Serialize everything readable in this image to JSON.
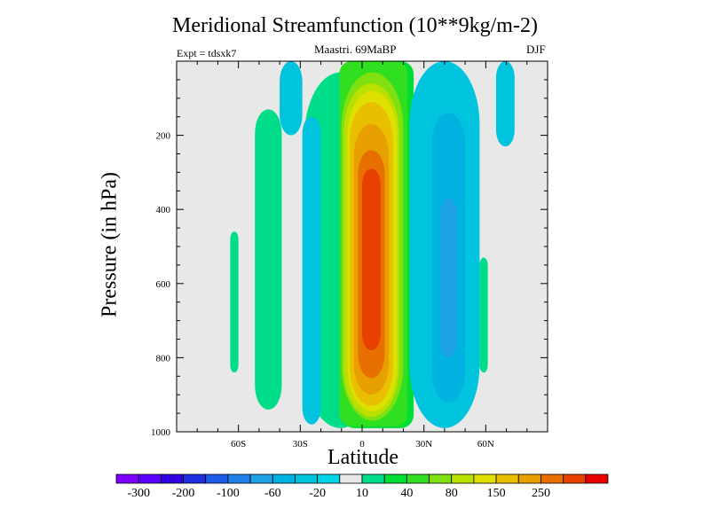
{
  "chart_data": {
    "type": "contour",
    "title": "Meridional Streamfunction (10**9kg/m-2)",
    "left_label": "Expt = tdsxk7",
    "center_label": "Maastri.  69MaBP",
    "right_label": "DJF",
    "xlabel": "Latitude",
    "ylabel": "Pressure (in hPa)",
    "x_axis": {
      "range": [
        -90,
        90
      ],
      "ticks": [
        {
          "value": -60,
          "label": "60S"
        },
        {
          "value": -30,
          "label": "30S"
        },
        {
          "value": 0,
          "label": "0"
        },
        {
          "value": 30,
          "label": "30N"
        },
        {
          "value": 60,
          "label": "60N"
        }
      ],
      "minor_step": 10
    },
    "y_axis": {
      "range": [
        0,
        1000
      ],
      "reversed": true,
      "ticks": [
        {
          "value": 200,
          "label": "200"
        },
        {
          "value": 400,
          "label": "400"
        },
        {
          "value": 600,
          "label": "600"
        },
        {
          "value": 800,
          "label": "800"
        },
        {
          "value": 1000,
          "label": "1000"
        }
      ],
      "minor_step": 50
    },
    "colorbar": {
      "levels": [
        -300,
        -250,
        -200,
        -150,
        -100,
        -80,
        -60,
        -40,
        -20,
        -10,
        10,
        20,
        40,
        60,
        80,
        100,
        150,
        200,
        250,
        300
      ],
      "colors": [
        "#7f00ff",
        "#5a00ff",
        "#3000e0",
        "#1f2fe0",
        "#1e5ae8",
        "#1f7fe8",
        "#1ea2e6",
        "#00b2e0",
        "#00c3dd",
        "#00d4e6",
        "#e8e8e8",
        "#00dd88",
        "#00dd33",
        "#30e020",
        "#80e010",
        "#b8e000",
        "#e0e000",
        "#e8c000",
        "#e8a000",
        "#e87000",
        "#e84000",
        "#e80000"
      ],
      "labels": [
        {
          "level": -300,
          "text": "-300"
        },
        {
          "level": -200,
          "text": "-200"
        },
        {
          "level": -100,
          "text": "-100"
        },
        {
          "level": -60,
          "text": "-60"
        },
        {
          "level": -20,
          "text": "-20"
        },
        {
          "level": 10,
          "text": "10"
        },
        {
          "level": 40,
          "text": "40"
        },
        {
          "level": 80,
          "text": "80"
        },
        {
          "level": 150,
          "text": "150"
        },
        {
          "level": 250,
          "text": "250"
        }
      ]
    },
    "background_color": "#e8e8e8",
    "regions": [
      {
        "name": "south-cell-10",
        "level": 10,
        "color": "#00dd88",
        "lat": [
          -28,
          7
        ],
        "p": [
          30,
          990
        ],
        "shape": "ellipse"
      },
      {
        "name": "hadley-cell-20",
        "level": 20,
        "color": "#00dd33",
        "lat": [
          -10,
          25
        ],
        "p": [
          0,
          990
        ],
        "shape": "rect"
      },
      {
        "name": "hadley-cell-40",
        "level": 40,
        "color": "#30e020",
        "lat": [
          -11,
          22
        ],
        "p": [
          0,
          985
        ],
        "shape": "rect"
      },
      {
        "name": "hadley-cell-60",
        "level": 60,
        "color": "#80e010",
        "lat": [
          -10,
          20
        ],
        "p": [
          30,
          970
        ],
        "shape": "ellipse"
      },
      {
        "name": "hadley-cell-80",
        "level": 80,
        "color": "#b8e000",
        "lat": [
          -9,
          18
        ],
        "p": [
          60,
          960
        ],
        "shape": "ellipse"
      },
      {
        "name": "hadley-cell-100",
        "level": 100,
        "color": "#e0e000",
        "lat": [
          -7,
          17
        ],
        "p": [
          80,
          945
        ],
        "shape": "ellipse"
      },
      {
        "name": "hadley-cell-150",
        "level": 150,
        "color": "#e8c000",
        "lat": [
          -6,
          15
        ],
        "p": [
          110,
          930
        ],
        "shape": "ellipse"
      },
      {
        "name": "hadley-cell-200",
        "level": 200,
        "color": "#e8a000",
        "lat": [
          -4,
          13
        ],
        "p": [
          170,
          900
        ],
        "shape": "ellipse"
      },
      {
        "name": "hadley-cell-250",
        "level": 250,
        "color": "#e87000",
        "lat": [
          -2,
          11
        ],
        "p": [
          240,
          855
        ],
        "shape": "ellipse"
      },
      {
        "name": "hadley-cell-300",
        "level": 300,
        "color": "#e84000",
        "lat": [
          0,
          9
        ],
        "p": [
          290,
          780
        ],
        "shape": "ellipse"
      },
      {
        "name": "north-cell-10",
        "level": -10,
        "color": "#00c3dd",
        "lat": [
          23,
          57
        ],
        "p": [
          0,
          990
        ],
        "shape": "ellipse"
      },
      {
        "name": "north-cell-20",
        "level": -20,
        "color": "#00b2e0",
        "lat": [
          34,
          50
        ],
        "p": [
          140,
          920
        ],
        "shape": "ellipse"
      },
      {
        "name": "north-cell-40",
        "level": -40,
        "color": "#1ea2e6",
        "lat": [
          38,
          46
        ],
        "p": [
          370,
          800
        ],
        "shape": "ellipse"
      },
      {
        "name": "south-midlat-10",
        "level": 10,
        "color": "#00dd88",
        "lat": [
          -52,
          -39
        ],
        "p": [
          130,
          940
        ],
        "shape": "ellipse"
      },
      {
        "name": "south-midlat-10b",
        "level": 10,
        "color": "#00dd88",
        "lat": [
          -64,
          -60
        ],
        "p": [
          460,
          840
        ],
        "shape": "ellipse"
      },
      {
        "name": "south-strip-10",
        "level": -10,
        "color": "#00c3dd",
        "lat": [
          -29,
          -20
        ],
        "p": [
          150,
          980
        ],
        "shape": "ellipse"
      },
      {
        "name": "upper-south-10",
        "level": -10,
        "color": "#00c3dd",
        "lat": [
          -40,
          -29
        ],
        "p": [
          0,
          200
        ],
        "shape": "ellipse"
      },
      {
        "name": "upper-north-10",
        "level": -10,
        "color": "#00c3dd",
        "lat": [
          65,
          74
        ],
        "p": [
          0,
          230
        ],
        "shape": "ellipse"
      },
      {
        "name": "north-midlat-10",
        "level": 10,
        "color": "#00dd88",
        "lat": [
          57,
          61
        ],
        "p": [
          530,
          840
        ],
        "shape": "ellipse"
      }
    ]
  }
}
